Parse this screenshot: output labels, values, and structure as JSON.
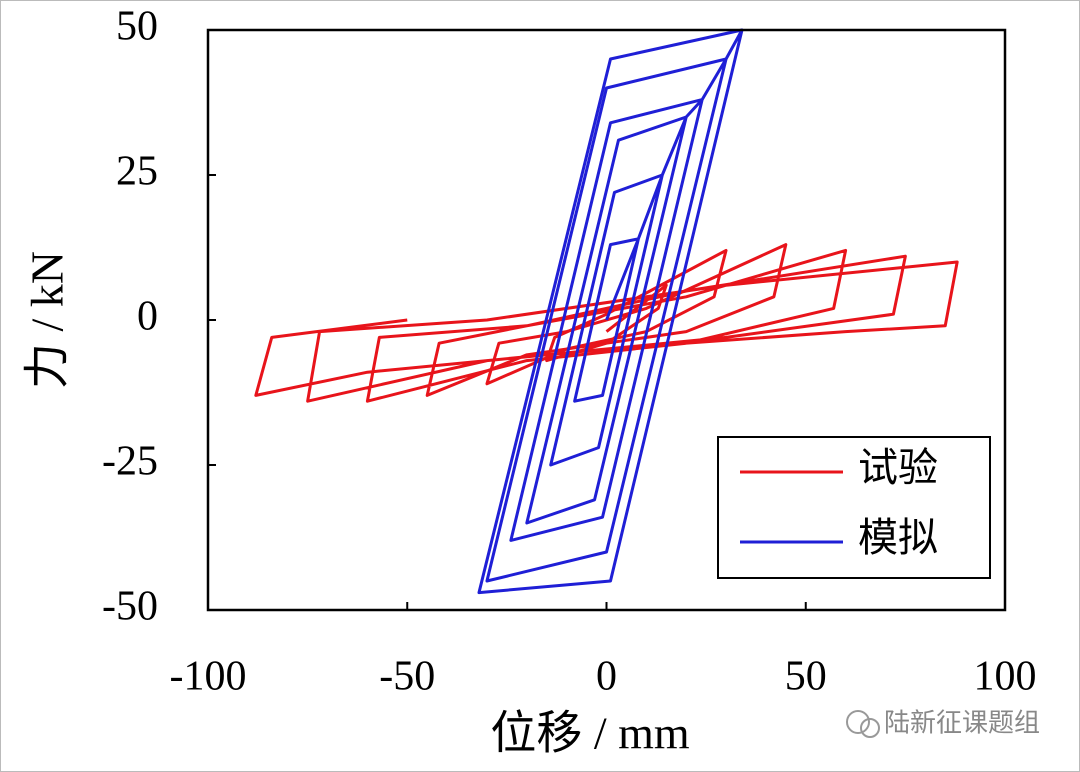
{
  "chart_data": {
    "type": "line",
    "x_label": "位移 / mm",
    "y_label": "力 / kN",
    "xlim": [
      -100,
      100
    ],
    "xticks": [
      -100,
      -50,
      0,
      50,
      100
    ],
    "ylim": [
      -50,
      50
    ],
    "yticks": [
      -50,
      -25,
      0,
      25,
      50
    ],
    "legend": "lower right",
    "annotation": "陆新征课题组",
    "series": [
      {
        "name": "试验",
        "color": "#e8141b",
        "x": [
          0,
          15,
          13,
          0,
          -15,
          -13,
          0,
          30,
          27,
          10,
          -10,
          -30,
          -27,
          -10,
          10,
          45,
          42,
          20,
          -20,
          -45,
          -42,
          -20,
          20,
          60,
          57,
          20,
          -20,
          -60,
          -57,
          -20,
          20,
          75,
          72,
          30,
          -30,
          -75,
          -72,
          -30,
          30,
          88,
          85,
          60,
          0,
          -60,
          -88,
          -84,
          -50
        ],
        "values": [
          -2,
          6,
          2,
          -4,
          -7,
          -3,
          1,
          12,
          4,
          -2,
          -5,
          -11,
          -4,
          -2,
          2,
          13,
          4,
          -2,
          -6,
          -13,
          -4,
          -1,
          4,
          12,
          2,
          -4,
          -7,
          -14,
          -3,
          -1,
          5,
          11,
          1,
          -3,
          -7,
          -14,
          -2,
          0,
          6,
          10,
          -1,
          -2,
          -5,
          -9,
          -13,
          -3,
          0
        ]
      },
      {
        "name": "模拟",
        "color": "#1f1fd6",
        "x": [
          0,
          8,
          -1,
          -8,
          1,
          8,
          14,
          -2,
          -14,
          2,
          14,
          20,
          -3,
          -20,
          3,
          20,
          24,
          -1,
          -24,
          1,
          24,
          30,
          0,
          -30,
          0,
          30,
          34,
          1,
          -32,
          1,
          34
        ],
        "values": [
          0,
          14,
          -13,
          -14,
          13,
          14,
          25,
          -22,
          -25,
          22,
          25,
          35,
          -31,
          -35,
          31,
          35,
          38,
          -34,
          -38,
          34,
          38,
          45,
          -40,
          -45,
          40,
          45,
          50,
          -45,
          -47,
          45,
          50
        ]
      }
    ]
  }
}
